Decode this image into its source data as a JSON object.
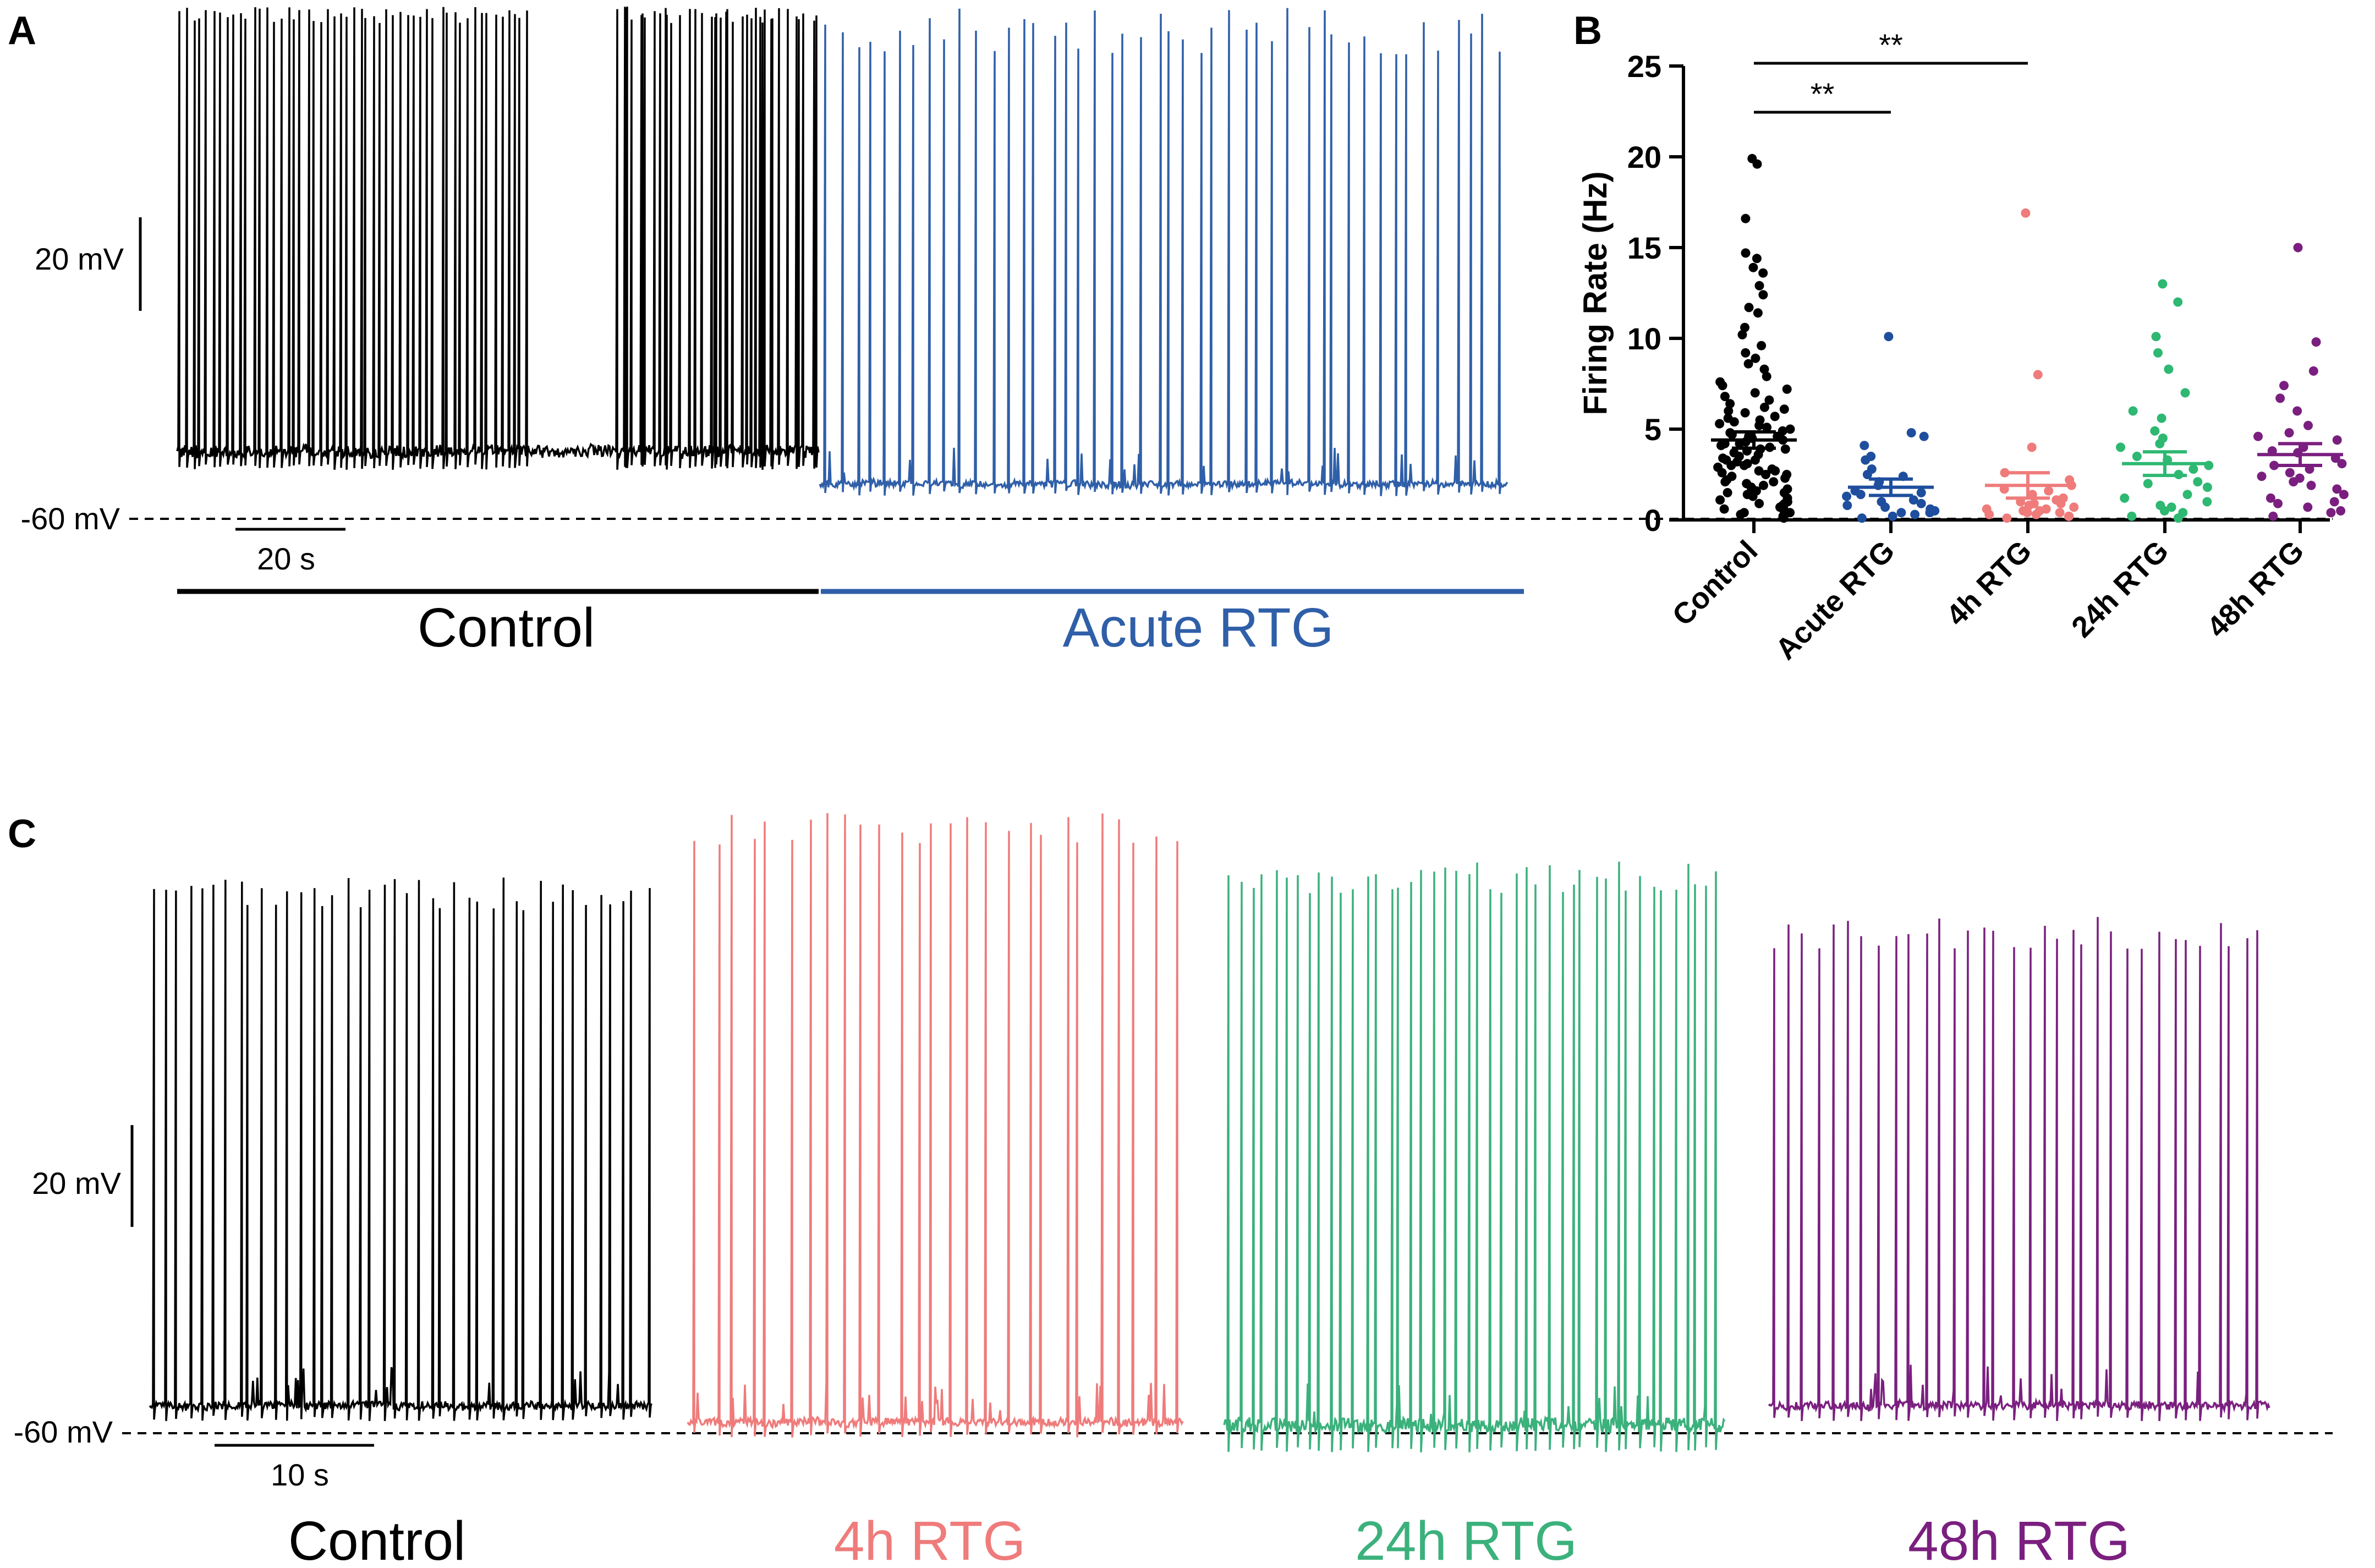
{
  "panels": {
    "A": {
      "letter": "A",
      "scale_mV": "20 mV",
      "baseline": "-60 mV",
      "scale_time": "20 s",
      "conditions": [
        {
          "label": "Control",
          "color": "#000000",
          "spikes": 96,
          "burst_start": 0.68
        },
        {
          "label": "Acute RTG",
          "color": "#2F5FA8",
          "spikes": 46
        }
      ]
    },
    "B": {
      "letter": "B"
    },
    "C": {
      "letter": "C",
      "scale_mV": "20 mV",
      "baseline": "-60 mV",
      "scale_time": "10 s",
      "traces": [
        {
          "label": "Control",
          "color": "#000000",
          "spikes": 42,
          "hyper": false
        },
        {
          "label": "4h RTG",
          "color": "#EF7B7B",
          "spikes": 27,
          "hyper": false
        },
        {
          "label": "24h RTG",
          "color": "#3BB17C",
          "spikes": 44,
          "hyper": true
        },
        {
          "label": "48h RTG",
          "color": "#7A1F7F",
          "spikes": 34,
          "hyper": false
        }
      ]
    }
  },
  "chart_data": {
    "type": "scatter",
    "title": "",
    "xlabel": "",
    "ylabel": "Firing Rate (Hz)",
    "ylim": [
      0,
      25
    ],
    "yticks": [
      0,
      5,
      10,
      15,
      20,
      25
    ],
    "categories": [
      "Control",
      "Acute RTG",
      "4h  RTG",
      "24h  RTG",
      "48h  RTG"
    ],
    "colors": [
      "#000000",
      "#1F4E9E",
      "#EF7B7B",
      "#2EB872",
      "#7A1F7F"
    ],
    "means": [
      4.4,
      1.8,
      1.9,
      3.1,
      3.6
    ],
    "sem": [
      0.45,
      0.45,
      0.7,
      0.65,
      0.6
    ],
    "points": [
      [
        19.9,
        19.6,
        16.6,
        14.7,
        14.4,
        13.9,
        13.6,
        12.9,
        12.4,
        11.7,
        11.4,
        10.6,
        10.2,
        9.6,
        9.2,
        8.9,
        8.6,
        8.3,
        7.9,
        7.6,
        7.4,
        7.2,
        7.0,
        6.8,
        6.6,
        6.4,
        6.2,
        6.0,
        5.9,
        5.7,
        5.6,
        5.5,
        5.3,
        5.2,
        5.1,
        5.0,
        4.9,
        4.8,
        4.7,
        4.6,
        4.5,
        4.4,
        4.3,
        4.2,
        4.1,
        4.0,
        3.9,
        3.8,
        3.7,
        3.6,
        3.5,
        3.4,
        3.3,
        3.2,
        3.1,
        3.0,
        2.9,
        2.8,
        2.7,
        2.6,
        2.5,
        2.4,
        2.3,
        2.2,
        2.1,
        2.0,
        1.9,
        1.8,
        1.7,
        1.6,
        1.5,
        1.4,
        1.3,
        1.2,
        1.1,
        1.0,
        0.9,
        0.8,
        0.7,
        0.6,
        0.5,
        0.4,
        0.3,
        0.2,
        0.1,
        5.4,
        4.6,
        3.9,
        3.3,
        2.7,
        2.1,
        1.5,
        0.9,
        0.4,
        6.1,
        4.2,
        3.0,
        1.8,
        0.6,
        2.5
      ],
      [
        10.1,
        4.8,
        4.6,
        4.1,
        3.5,
        3.3,
        2.8,
        2.4,
        2.1,
        1.9,
        1.6,
        1.5,
        1.3,
        1.1,
        1.0,
        0.8,
        0.7,
        0.6,
        0.5,
        0.4,
        0.3,
        0.2,
        0.1,
        1.4,
        0.9,
        0.4,
        2.5
      ],
      [
        16.9,
        8.0,
        4.0,
        2.6,
        2.2,
        1.9,
        1.6,
        1.4,
        1.2,
        1.0,
        0.9,
        0.8,
        0.7,
        0.6,
        0.5,
        0.4,
        0.3,
        0.2,
        0.1,
        1.1,
        0.5,
        0.3,
        0.9,
        1.7,
        0.2,
        0.6,
        0.4
      ],
      [
        13.0,
        12.0,
        10.1,
        9.2,
        8.3,
        7.0,
        6.0,
        5.6,
        4.9,
        4.5,
        4.0,
        3.5,
        3.0,
        2.5,
        2.1,
        1.8,
        1.4,
        1.0,
        0.7,
        0.4,
        0.2,
        0.1,
        3.3,
        2.0,
        1.2,
        0.5,
        4.2,
        0.8,
        2.8
      ],
      [
        15.0,
        9.8,
        8.2,
        7.4,
        6.7,
        6.0,
        5.2,
        4.8,
        4.4,
        4.0,
        3.7,
        3.4,
        3.1,
        2.8,
        2.4,
        2.1,
        1.7,
        1.4,
        1.0,
        0.7,
        0.4,
        0.2,
        3.8,
        2.6,
        1.2,
        0.5,
        4.6,
        3.0,
        1.9,
        0.9,
        2.3
      ]
    ],
    "significance": [
      {
        "from": "Control",
        "to": "Acute RTG",
        "label": "**"
      },
      {
        "from": "Control",
        "to": "4h  RTG",
        "label": "**"
      }
    ]
  }
}
